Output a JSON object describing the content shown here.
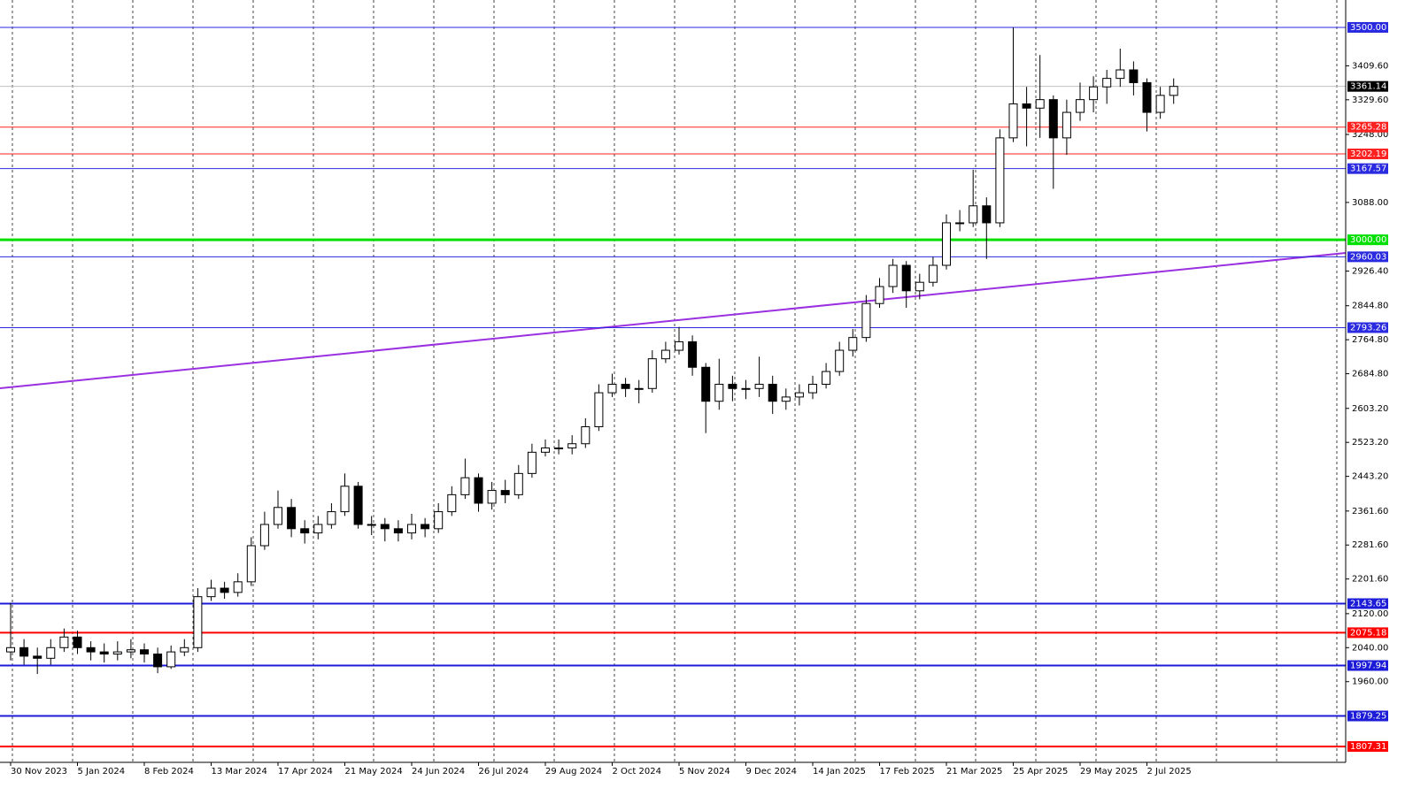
{
  "chart_data": {
    "type": "candlestick",
    "categories": [
      "30 Nov 2023",
      null,
      null,
      null,
      null,
      "5 Jan 2024",
      null,
      null,
      null,
      null,
      "8 Feb 2024",
      null,
      null,
      null,
      null,
      "13 Mar 2024",
      null,
      null,
      null,
      null,
      "17 Apr 2024",
      null,
      null,
      null,
      null,
      "21 May 2024",
      null,
      null,
      null,
      null,
      "24 Jun 2024",
      null,
      null,
      null,
      null,
      "26 Jul 2024",
      null,
      null,
      null,
      null,
      "29 Aug 2024",
      null,
      null,
      null,
      null,
      "2 Oct 2024",
      null,
      null,
      null,
      null,
      "5 Nov 2024",
      null,
      null,
      null,
      null,
      "9 Dec 2024",
      null,
      null,
      null,
      null,
      "14 Jan 2025",
      null,
      null,
      null,
      null,
      "17 Feb 2025",
      null,
      null,
      null,
      null,
      "21 Mar 2025",
      null,
      null,
      null,
      null,
      "25 Apr 2025",
      null,
      null,
      null,
      null,
      "29 May 2025",
      null,
      null,
      null,
      null,
      "2 Jul 2025",
      null,
      null
    ],
    "open": [
      2030,
      2040,
      2020,
      2015,
      2040,
      2065,
      2040,
      2030,
      2025,
      2030,
      2035,
      2025,
      1995,
      2030,
      2040,
      2160,
      2180,
      2170,
      2195,
      2280,
      2330,
      2370,
      2320,
      2310,
      2330,
      2360,
      2420,
      2330,
      2330,
      2320,
      2310,
      2330,
      2320,
      2360,
      2400,
      2440,
      2380,
      2410,
      2400,
      2450,
      2500,
      2510,
      2510,
      2520,
      2560,
      2640,
      2660,
      2650,
      2650,
      2720,
      2740,
      2760,
      2700,
      2620,
      2660,
      2650,
      2650,
      2660,
      2620,
      2630,
      2640,
      2660,
      2690,
      2740,
      2770,
      2850,
      2890,
      2940,
      2880,
      2900,
      2940,
      3040,
      3040,
      3080,
      3040,
      3240,
      3320,
      3310,
      3330,
      3240,
      3300,
      3330,
      3360,
      3380,
      3400,
      3370,
      3300,
      3340
    ],
    "high": [
      2145,
      2060,
      2040,
      2060,
      2085,
      2080,
      2055,
      2050,
      2055,
      2060,
      2050,
      2040,
      2045,
      2060,
      2180,
      2200,
      2195,
      2215,
      2300,
      2360,
      2410,
      2390,
      2340,
      2350,
      2380,
      2450,
      2430,
      2350,
      2345,
      2340,
      2355,
      2345,
      2380,
      2420,
      2485,
      2450,
      2430,
      2435,
      2470,
      2520,
      2530,
      2530,
      2540,
      2580,
      2660,
      2685,
      2675,
      2670,
      2740,
      2760,
      2795,
      2775,
      2710,
      2720,
      2680,
      2670,
      2725,
      2680,
      2650,
      2660,
      2680,
      2710,
      2760,
      2790,
      2870,
      2910,
      2955,
      2950,
      2920,
      2960,
      3060,
      3070,
      3165,
      3100,
      3260,
      3500,
      3360,
      3435,
      3340,
      3330,
      3370,
      3385,
      3400,
      3450,
      3420,
      3380,
      3360,
      3380
    ],
    "low": [
      2010,
      2000,
      1978,
      2000,
      2030,
      2025,
      2010,
      2005,
      2010,
      2015,
      2005,
      1980,
      1990,
      2020,
      2030,
      2150,
      2155,
      2160,
      2185,
      2270,
      2320,
      2300,
      2285,
      2295,
      2320,
      2350,
      2320,
      2305,
      2290,
      2290,
      2295,
      2300,
      2310,
      2350,
      2390,
      2360,
      2365,
      2380,
      2390,
      2440,
      2490,
      2495,
      2495,
      2510,
      2550,
      2630,
      2630,
      2615,
      2640,
      2710,
      2730,
      2680,
      2545,
      2600,
      2620,
      2625,
      2630,
      2590,
      2600,
      2610,
      2625,
      2650,
      2680,
      2725,
      2760,
      2840,
      2875,
      2840,
      2860,
      2890,
      2930,
      3020,
      3030,
      2955,
      3030,
      3230,
      3220,
      3240,
      3120,
      3200,
      3280,
      3300,
      3320,
      3360,
      3340,
      3255,
      3285,
      3320
    ],
    "close": [
      2040,
      2020,
      2015,
      2040,
      2065,
      2040,
      2030,
      2025,
      2030,
      2035,
      2025,
      1995,
      2030,
      2040,
      2160,
      2180,
      2170,
      2195,
      2280,
      2330,
      2370,
      2320,
      2310,
      2330,
      2360,
      2420,
      2330,
      2330,
      2320,
      2310,
      2330,
      2320,
      2360,
      2400,
      2440,
      2380,
      2410,
      2400,
      2450,
      2500,
      2510,
      2510,
      2520,
      2560,
      2640,
      2660,
      2650,
      2650,
      2720,
      2740,
      2760,
      2700,
      2620,
      2660,
      2650,
      2650,
      2660,
      2620,
      2630,
      2640,
      2660,
      2690,
      2740,
      2770,
      2850,
      2890,
      2940,
      2880,
      2900,
      2940,
      3040,
      3040,
      3080,
      3040,
      3240,
      3320,
      3310,
      3330,
      3240,
      3300,
      3330,
      3360,
      3380,
      3400,
      3370,
      3300,
      3340,
      3361.14
    ],
    "ylim": [
      1770,
      3564.5
    ],
    "yticks": [
      {
        "value": 3409.6,
        "label": "3409.60"
      },
      {
        "value": 3329.6,
        "label": "3329.60"
      },
      {
        "value": 3248,
        "label": "3248.00"
      },
      {
        "value": 3088,
        "label": "3088.00"
      },
      {
        "value": 2926.4,
        "label": "2926.40"
      },
      {
        "value": 2844.8,
        "label": "2844.80"
      },
      {
        "value": 2764.8,
        "label": "2764.80"
      },
      {
        "value": 2684.8,
        "label": "2684.80"
      },
      {
        "value": 2603.2,
        "label": "2603.20"
      },
      {
        "value": 2523.2,
        "label": "2523.20"
      },
      {
        "value": 2443.2,
        "label": "2443.20"
      },
      {
        "value": 2361.6,
        "label": "2361.60"
      },
      {
        "value": 2281.6,
        "label": "2281.60"
      },
      {
        "value": 2201.6,
        "label": "2201.60"
      },
      {
        "value": 2120,
        "label": "2120.00"
      },
      {
        "value": 2040,
        "label": "2040.00"
      },
      {
        "value": 1960,
        "label": "1960.00"
      }
    ],
    "levels": [
      {
        "value": 3500,
        "label": "3500.00",
        "color": "#2a2ae0",
        "width": 1
      },
      {
        "value": 3265.28,
        "label": "3265.28",
        "color": "#ff2020",
        "width": 1
      },
      {
        "value": 3202.19,
        "label": "3202.19",
        "color": "#ff2020",
        "width": 1
      },
      {
        "value": 3167.57,
        "label": "3167.57",
        "color": "#2a2ae0",
        "width": 1
      },
      {
        "value": 3000,
        "label": "3000.00",
        "color": "#00e000",
        "width": 3
      },
      {
        "value": 2960.03,
        "label": "2960.03",
        "color": "#2a2ae0",
        "width": 1
      },
      {
        "value": 2793.26,
        "label": "2793.26",
        "color": "#2a2ae0",
        "width": 1
      },
      {
        "value": 2143.65,
        "label": "2143.65",
        "color": "#1c1cd8",
        "width": 2
      },
      {
        "value": 2075.18,
        "label": "2075.18",
        "color": "#ff0000",
        "width": 2
      },
      {
        "value": 1997.94,
        "label": "1997.94",
        "color": "#1c1cd8",
        "width": 2
      },
      {
        "value": 1879.25,
        "label": "1879.25",
        "color": "#1c1cd8",
        "width": 2
      },
      {
        "value": 1807.31,
        "label": "1807.31",
        "color": "#ff0000",
        "width": 2
      }
    ],
    "current_price": {
      "value": 3361.14,
      "label": "3361.14",
      "color": "#000000"
    },
    "trendline": {
      "values": [
        2650.5,
        2969
      ],
      "color": "#9b30e0"
    }
  }
}
